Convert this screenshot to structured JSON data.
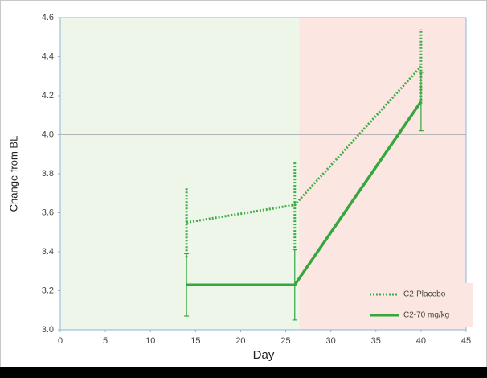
{
  "chart_data": {
    "type": "line",
    "x_label": "Day",
    "y_label": "Change from BL",
    "x": [
      14,
      26,
      40
    ],
    "series": [
      {
        "name": "C2-Placebo",
        "color": "#3cae45",
        "style": "dotted",
        "values": [
          3.55,
          3.64,
          4.35
        ],
        "errors": [
          0.18,
          0.22,
          0.19
        ]
      },
      {
        "name": "C2-70 mg/kg",
        "color": "#36a63e",
        "style": "solid",
        "values": [
          3.23,
          3.23,
          4.17
        ],
        "errors": [
          0.16,
          0.18,
          0.15
        ]
      }
    ],
    "xlim": [
      0,
      45
    ],
    "xticks": [
      0,
      5,
      10,
      15,
      20,
      25,
      30,
      35,
      40,
      45
    ],
    "ylim": [
      3,
      4.6
    ],
    "yticks": [
      {
        "value": 3,
        "label": "3.0"
      },
      3.2,
      3.4,
      3.6,
      3.8,
      {
        "value": 4,
        "label": "4.0"
      },
      4.2,
      4.4,
      4.6
    ],
    "reference_line": 4,
    "shaded_regions": [
      {
        "xrange": [
          0,
          26.5
        ],
        "color": "#eef5e9"
      },
      {
        "xrange": [
          26.5,
          45
        ],
        "color": "#fbe6e1"
      }
    ],
    "legend": "lower right"
  }
}
